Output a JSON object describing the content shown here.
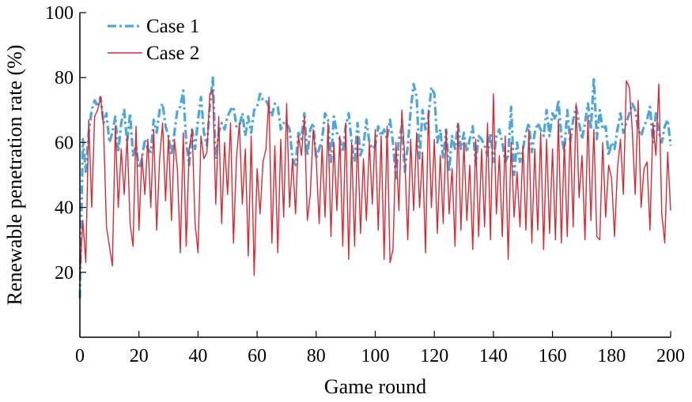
{
  "chart_data": {
    "type": "line",
    "xlabel": "Game round",
    "ylabel": "Renewable penetration rate (%)",
    "xlim": [
      0,
      200
    ],
    "ylim": [
      0,
      100
    ],
    "xticks": [
      0,
      20,
      40,
      60,
      80,
      100,
      120,
      140,
      160,
      180,
      200
    ],
    "yticks": [
      20,
      40,
      60,
      80,
      100
    ],
    "grid": false,
    "legend_position": "top-left",
    "series": [
      {
        "name": "Case 1",
        "color": "#4da6dc",
        "style": "dash-dot",
        "x": [
          0,
          1,
          2,
          3,
          4,
          5,
          6,
          7,
          8,
          9,
          10,
          11,
          12,
          13,
          14,
          15,
          16,
          17,
          18,
          19,
          20,
          21,
          22,
          23,
          24,
          25,
          26,
          27,
          28,
          29,
          30,
          31,
          32,
          33,
          34,
          35,
          36,
          37,
          38,
          39,
          40,
          41,
          42,
          43,
          44,
          45,
          46,
          47,
          48,
          49,
          50,
          51,
          52,
          53,
          54,
          55,
          56,
          57,
          58,
          59,
          60,
          61,
          62,
          63,
          64,
          65,
          66,
          67,
          68,
          69,
          70,
          71,
          72,
          73,
          74,
          75,
          76,
          77,
          78,
          79,
          80,
          81,
          82,
          83,
          84,
          85,
          86,
          87,
          88,
          89,
          90,
          91,
          92,
          93,
          94,
          95,
          96,
          97,
          98,
          99,
          100,
          101,
          102,
          103,
          104,
          105,
          106,
          107,
          108,
          109,
          110,
          111,
          112,
          113,
          114,
          115,
          116,
          117,
          118,
          119,
          120,
          121,
          122,
          123,
          124,
          125,
          126,
          127,
          128,
          129,
          130,
          131,
          132,
          133,
          134,
          135,
          136,
          137,
          138,
          139,
          140,
          141,
          142,
          143,
          144,
          145,
          146,
          147,
          148,
          149,
          150,
          151,
          152,
          153,
          154,
          155,
          156,
          157,
          158,
          159,
          160,
          161,
          162,
          163,
          164,
          165,
          166,
          167,
          168,
          169,
          170,
          171,
          172,
          173,
          174,
          175,
          176,
          177,
          178,
          179,
          180,
          181,
          182,
          183,
          184,
          185,
          186,
          187,
          188,
          189,
          190,
          191,
          192,
          193,
          194,
          195,
          196,
          197,
          198,
          199,
          200
        ],
        "y": [
          12,
          61,
          51,
          63,
          70,
          73,
          71,
          74,
          66,
          69,
          60,
          63,
          68,
          57,
          66,
          70,
          60,
          69,
          56,
          59,
          52,
          55,
          61,
          58,
          57,
          67,
          63,
          70,
          72,
          65,
          62,
          56,
          63,
          70,
          71,
          76,
          60,
          53,
          64,
          58,
          67,
          74,
          63,
          59,
          71,
          80,
          55,
          63,
          66,
          64,
          68,
          70,
          71,
          65,
          65,
          69,
          62,
          68,
          63,
          70,
          71,
          75,
          73,
          73,
          71,
          68,
          72,
          71,
          64,
          66,
          66,
          64,
          55,
          53,
          63,
          61,
          69,
          56,
          64,
          66,
          55,
          58,
          61,
          69,
          67,
          54,
          68,
          63,
          61,
          57,
          65,
          69,
          60,
          54,
          66,
          56,
          59,
          67,
          60,
          58,
          59,
          65,
          62,
          64,
          61,
          67,
          60,
          49,
          61,
          65,
          51,
          59,
          70,
          78,
          74,
          55,
          70,
          64,
          68,
          77,
          75,
          60,
          64,
          55,
          64,
          51,
          62,
          58,
          66,
          58,
          63,
          57,
          61,
          65,
          53,
          62,
          61,
          59,
          56,
          63,
          54,
          62,
          64,
          60,
          54,
          56,
          71,
          50,
          60,
          54,
          58,
          63,
          66,
          57,
          63,
          66,
          64,
          62,
          70,
          62,
          69,
          67,
          73,
          62,
          57,
          70,
          60,
          67,
          71,
          66,
          61,
          66,
          72,
          64,
          80,
          61,
          70,
          64,
          65,
          56,
          60,
          58,
          64,
          69,
          63,
          66,
          69,
          72,
          70,
          64,
          62,
          65,
          67,
          71,
          60,
          69,
          63,
          60,
          65,
          67,
          59
        ]
      },
      {
        "name": "Case 2",
        "color": "#d62a35",
        "style": "solid",
        "x": [
          0,
          1,
          2,
          3,
          4,
          5,
          6,
          7,
          8,
          9,
          10,
          11,
          12,
          13,
          14,
          15,
          16,
          17,
          18,
          19,
          20,
          21,
          22,
          23,
          24,
          25,
          26,
          27,
          28,
          29,
          30,
          31,
          32,
          33,
          34,
          35,
          36,
          37,
          38,
          39,
          40,
          41,
          42,
          43,
          44,
          45,
          46,
          47,
          48,
          49,
          50,
          51,
          52,
          53,
          54,
          55,
          56,
          57,
          58,
          59,
          60,
          61,
          62,
          63,
          64,
          65,
          66,
          67,
          68,
          69,
          70,
          71,
          72,
          73,
          74,
          75,
          76,
          77,
          78,
          79,
          80,
          81,
          82,
          83,
          84,
          85,
          86,
          87,
          88,
          89,
          90,
          91,
          92,
          93,
          94,
          95,
          96,
          97,
          98,
          99,
          100,
          101,
          102,
          103,
          104,
          105,
          106,
          107,
          108,
          109,
          110,
          111,
          112,
          113,
          114,
          115,
          116,
          117,
          118,
          119,
          120,
          121,
          122,
          123,
          124,
          125,
          126,
          127,
          128,
          129,
          130,
          131,
          132,
          133,
          134,
          135,
          136,
          137,
          138,
          139,
          140,
          141,
          142,
          143,
          144,
          145,
          146,
          147,
          148,
          149,
          150,
          151,
          152,
          153,
          154,
          155,
          156,
          157,
          158,
          159,
          160,
          161,
          162,
          163,
          164,
          165,
          166,
          167,
          168,
          169,
          170,
          171,
          172,
          173,
          174,
          175,
          176,
          177,
          178,
          179,
          180,
          181,
          182,
          183,
          184,
          185,
          186,
          187,
          188,
          189,
          190,
          191,
          192,
          193,
          194,
          195,
          196,
          197,
          198,
          199,
          200
        ],
        "y": [
          19,
          36,
          23,
          67,
          40,
          68,
          70,
          74,
          65,
          34,
          28,
          22,
          65,
          40,
          58,
          44,
          62,
          35,
          28,
          65,
          33,
          56,
          44,
          61,
          40,
          64,
          33,
          55,
          66,
          42,
          62,
          36,
          61,
          52,
          26,
          63,
          28,
          58,
          64,
          35,
          26,
          62,
          55,
          57,
          75,
          76,
          41,
          68,
          35,
          60,
          44,
          66,
          29,
          55,
          66,
          41,
          58,
          25,
          62,
          19,
          52,
          38,
          54,
          58,
          74,
          29,
          59,
          26,
          61,
          37,
          72,
          40,
          55,
          38,
          62,
          56,
          68,
          36,
          44,
          64,
          55,
          35,
          59,
          37,
          66,
          31,
          60,
          39,
          62,
          28,
          66,
          24,
          60,
          28,
          62,
          32,
          55,
          36,
          60,
          41,
          64,
          33,
          62,
          24,
          65,
          23,
          27,
          60,
          39,
          70,
          55,
          30,
          61,
          39,
          63,
          40,
          57,
          26,
          70,
          40,
          61,
          32,
          56,
          35,
          64,
          38,
          52,
          28,
          66,
          33,
          60,
          36,
          53,
          27,
          61,
          31,
          58,
          34,
          66,
          30,
          75,
          38,
          56,
          31,
          62,
          24,
          60,
          37,
          51,
          34,
          59,
          33,
          64,
          29,
          58,
          33,
          63,
          27,
          61,
          32,
          58,
          30,
          67,
          29,
          60,
          31,
          64,
          34,
          72,
          43,
          56,
          30,
          68,
          36,
          64,
          31,
          30,
          60,
          37,
          53,
          49,
          31,
          52,
          61,
          44,
          79,
          77,
          64,
          44,
          73,
          40,
          52,
          54,
          33,
          66,
          56,
          78,
          38,
          29,
          57,
          39
        ]
      }
    ]
  }
}
